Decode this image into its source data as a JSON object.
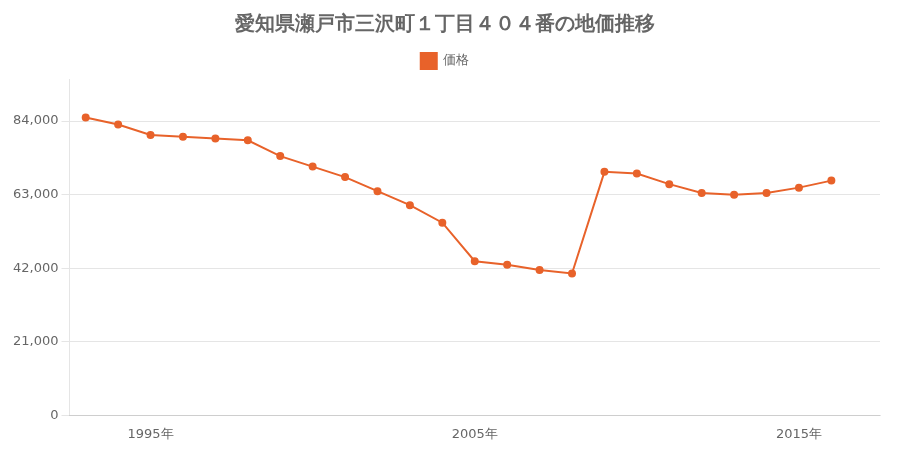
{
  "chart_data": {
    "type": "line",
    "title": "愛知県瀬戸市三沢町１丁目４０４番の地価推移",
    "x": [
      1993,
      1994,
      1995,
      1996,
      1997,
      1998,
      1999,
      2000,
      2001,
      2002,
      2003,
      2004,
      2005,
      2006,
      2007,
      2008,
      2009,
      2010,
      2011,
      2012,
      2013,
      2014,
      2015,
      2016
    ],
    "series": [
      {
        "name": "価格",
        "color": "#e8622a",
        "marker": "circle",
        "values": [
          85000,
          83000,
          80000,
          79500,
          79000,
          78500,
          74000,
          71000,
          68000,
          64000,
          60000,
          55000,
          44000,
          43000,
          41500,
          40500,
          69500,
          69000,
          66000,
          63500,
          63000,
          63500,
          65000,
          67000
        ]
      }
    ],
    "xlim": [
      1992.5,
      2017.5
    ],
    "xticks": [
      {
        "value": 1995,
        "label": "1995年"
      },
      {
        "value": 2005,
        "label": "2005年"
      },
      {
        "value": 2015,
        "label": "2015年"
      }
    ],
    "ylim": [
      0,
      96000
    ],
    "yticks": [
      0,
      {
        "value": 21000,
        "label": "21,000"
      },
      {
        "value": 42000,
        "label": "42,000"
      },
      {
        "value": 63000,
        "label": "63,000"
      },
      {
        "value": 84000,
        "label": "84,000"
      }
    ],
    "grid": "y",
    "legend": "top"
  }
}
